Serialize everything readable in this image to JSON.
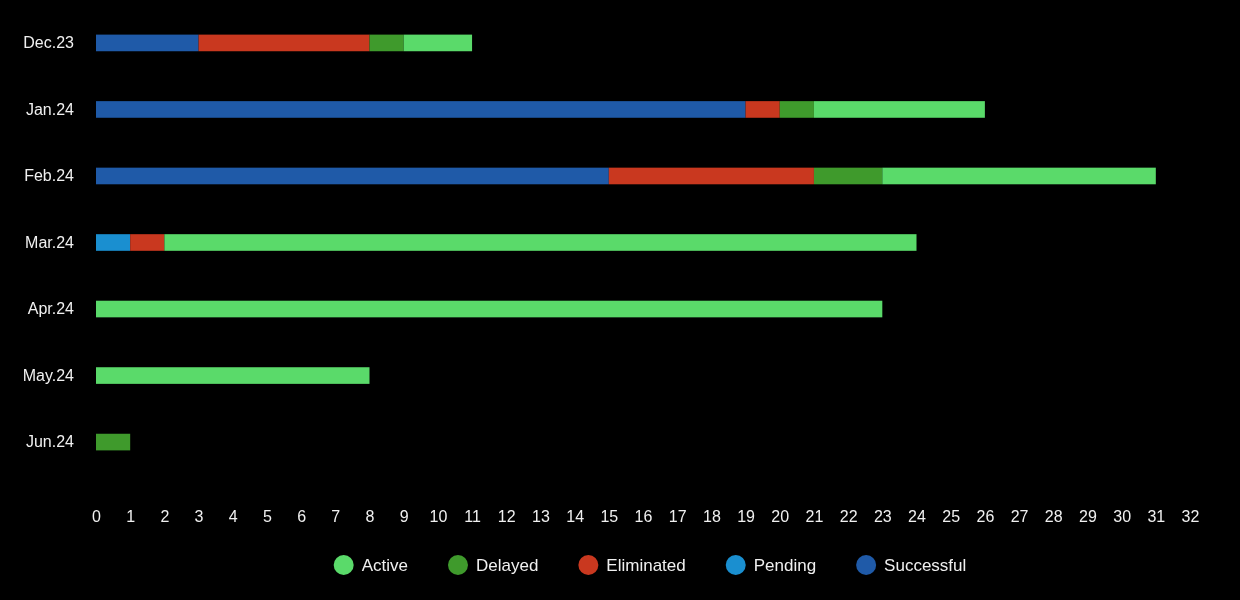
{
  "chart_data": {
    "type": "bar",
    "orientation": "horizontal",
    "stacked": true,
    "legend": "bottom",
    "grid": false,
    "categories": [
      "Dec.23",
      "Jan.24",
      "Feb.24",
      "Mar.24",
      "Apr.24",
      "May.24",
      "Jun.24"
    ],
    "series": [
      {
        "name": "Successful",
        "color": "#1f5aa8",
        "values": [
          3,
          19,
          15,
          0,
          0,
          0,
          0
        ]
      },
      {
        "name": "Pending",
        "color": "#1a8fd0",
        "values": [
          0,
          0,
          0,
          1,
          0,
          0,
          0
        ]
      },
      {
        "name": "Eliminated",
        "color": "#c9381f",
        "values": [
          5,
          1,
          6,
          1,
          0,
          0,
          0
        ]
      },
      {
        "name": "Delayed",
        "color": "#3f9a2c",
        "values": [
          1,
          1,
          2,
          0,
          0,
          0,
          1
        ]
      },
      {
        "name": "Active",
        "color": "#5ada6a",
        "values": [
          2,
          5,
          8,
          22,
          23,
          8,
          0
        ]
      }
    ],
    "xlim": [
      0,
      32
    ],
    "xticks": [
      0,
      1,
      2,
      3,
      4,
      5,
      6,
      7,
      8,
      9,
      10,
      11,
      12,
      13,
      14,
      15,
      16,
      17,
      18,
      19,
      20,
      21,
      22,
      23,
      24,
      25,
      26,
      27,
      28,
      29,
      30,
      31,
      32
    ]
  }
}
